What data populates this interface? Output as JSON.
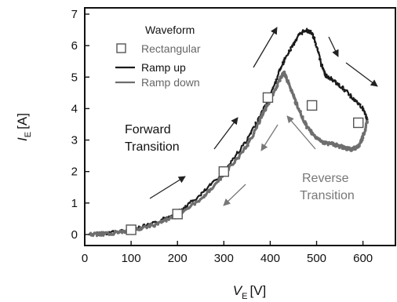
{
  "chart_data": {
    "type": "line",
    "xlabel": {
      "symbol": "V",
      "subscript": "E",
      "unit": "[V]"
    },
    "ylabel": {
      "symbol": "I",
      "subscript": "E",
      "unit": "[A]"
    },
    "xlim": [
      0,
      670
    ],
    "ylim": [
      -0.35,
      7.2
    ],
    "x_ticks": [
      0,
      100,
      200,
      300,
      400,
      500,
      600
    ],
    "y_ticks": [
      0,
      1,
      2,
      3,
      4,
      5,
      6,
      7
    ],
    "legend": {
      "title": "Waveform",
      "placement": "top-left",
      "entries": [
        "Rectangular",
        "Ramp up",
        "Ramp down"
      ]
    },
    "annotations": [
      "Forward\nTransition",
      "Reverse\nTransition"
    ],
    "series": [
      {
        "name": "Ramp up",
        "kind": "line",
        "color": "#1a1a1a",
        "points": [
          [
            10,
            0.0
          ],
          [
            50,
            0.05
          ],
          [
            100,
            0.15
          ],
          [
            150,
            0.35
          ],
          [
            200,
            0.7
          ],
          [
            250,
            1.25
          ],
          [
            300,
            2.0
          ],
          [
            350,
            3.0
          ],
          [
            380,
            3.8
          ],
          [
            400,
            4.4
          ],
          [
            420,
            5.2
          ],
          [
            440,
            5.8
          ],
          [
            460,
            6.3
          ],
          [
            475,
            6.5
          ],
          [
            490,
            6.4
          ],
          [
            500,
            6.0
          ],
          [
            510,
            5.4
          ],
          [
            520,
            5.05
          ],
          [
            540,
            4.85
          ],
          [
            560,
            4.6
          ],
          [
            580,
            4.3
          ],
          [
            600,
            4.0
          ],
          [
            610,
            3.6
          ]
        ]
      },
      {
        "name": "Ramp down",
        "kind": "line",
        "color": "#6e6e6e",
        "points": [
          [
            610,
            3.6
          ],
          [
            600,
            3.1
          ],
          [
            590,
            2.8
          ],
          [
            575,
            2.7
          ],
          [
            560,
            2.75
          ],
          [
            540,
            2.85
          ],
          [
            520,
            2.9
          ],
          [
            500,
            3.05
          ],
          [
            480,
            3.4
          ],
          [
            460,
            4.0
          ],
          [
            445,
            4.6
          ],
          [
            430,
            5.15
          ],
          [
            420,
            4.9
          ],
          [
            400,
            4.3
          ],
          [
            380,
            3.7
          ],
          [
            350,
            2.8
          ],
          [
            300,
            1.9
          ],
          [
            250,
            1.1
          ],
          [
            200,
            0.6
          ],
          [
            150,
            0.3
          ],
          [
            100,
            0.12
          ],
          [
            50,
            0.03
          ],
          [
            10,
            0.0
          ]
        ]
      },
      {
        "name": "Rectangular",
        "kind": "marker",
        "marker": "open-square",
        "color": "#555555",
        "points": [
          [
            100,
            0.15
          ],
          [
            200,
            0.65
          ],
          [
            300,
            2.0
          ],
          [
            395,
            4.35
          ],
          [
            490,
            4.1
          ],
          [
            590,
            3.55
          ]
        ]
      }
    ]
  }
}
